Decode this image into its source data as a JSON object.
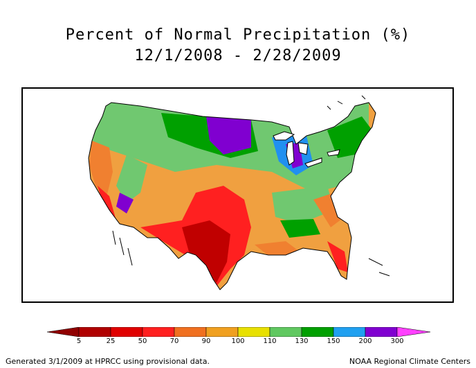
{
  "title": "Percent of Normal Precipitation (%)",
  "subtitle": "12/1/2008 - 2/28/2009",
  "legend": {
    "labels": [
      "5",
      "25",
      "50",
      "70",
      "90",
      "100",
      "110",
      "130",
      "150",
      "200",
      "300"
    ],
    "colors": [
      "#b00000",
      "#e00000",
      "#ff2020",
      "#f07020",
      "#f0a020",
      "#e8e000",
      "#60c860",
      "#00a000",
      "#20a0f0",
      "#8000d0",
      "#b000c0",
      "#ff40ff"
    ],
    "left_arrow_color": "#900000",
    "right_arrow_color": "#ff40ff"
  },
  "footer": {
    "left": "Generated 3/1/2009 at HPRCC using provisional data.",
    "right": "NOAA Regional Climate Centers"
  },
  "map": {
    "region": "Contiguous United States",
    "colors": {
      "dry_extreme": "#c00000",
      "dry": "#ff2020",
      "below": "#f08030",
      "slightly_below": "#f0a040",
      "near_normal": "#e8e000",
      "above": "#70c870",
      "wet": "#00a000",
      "very_wet": "#2090f0",
      "extreme_wet": "#8000d0"
    }
  }
}
